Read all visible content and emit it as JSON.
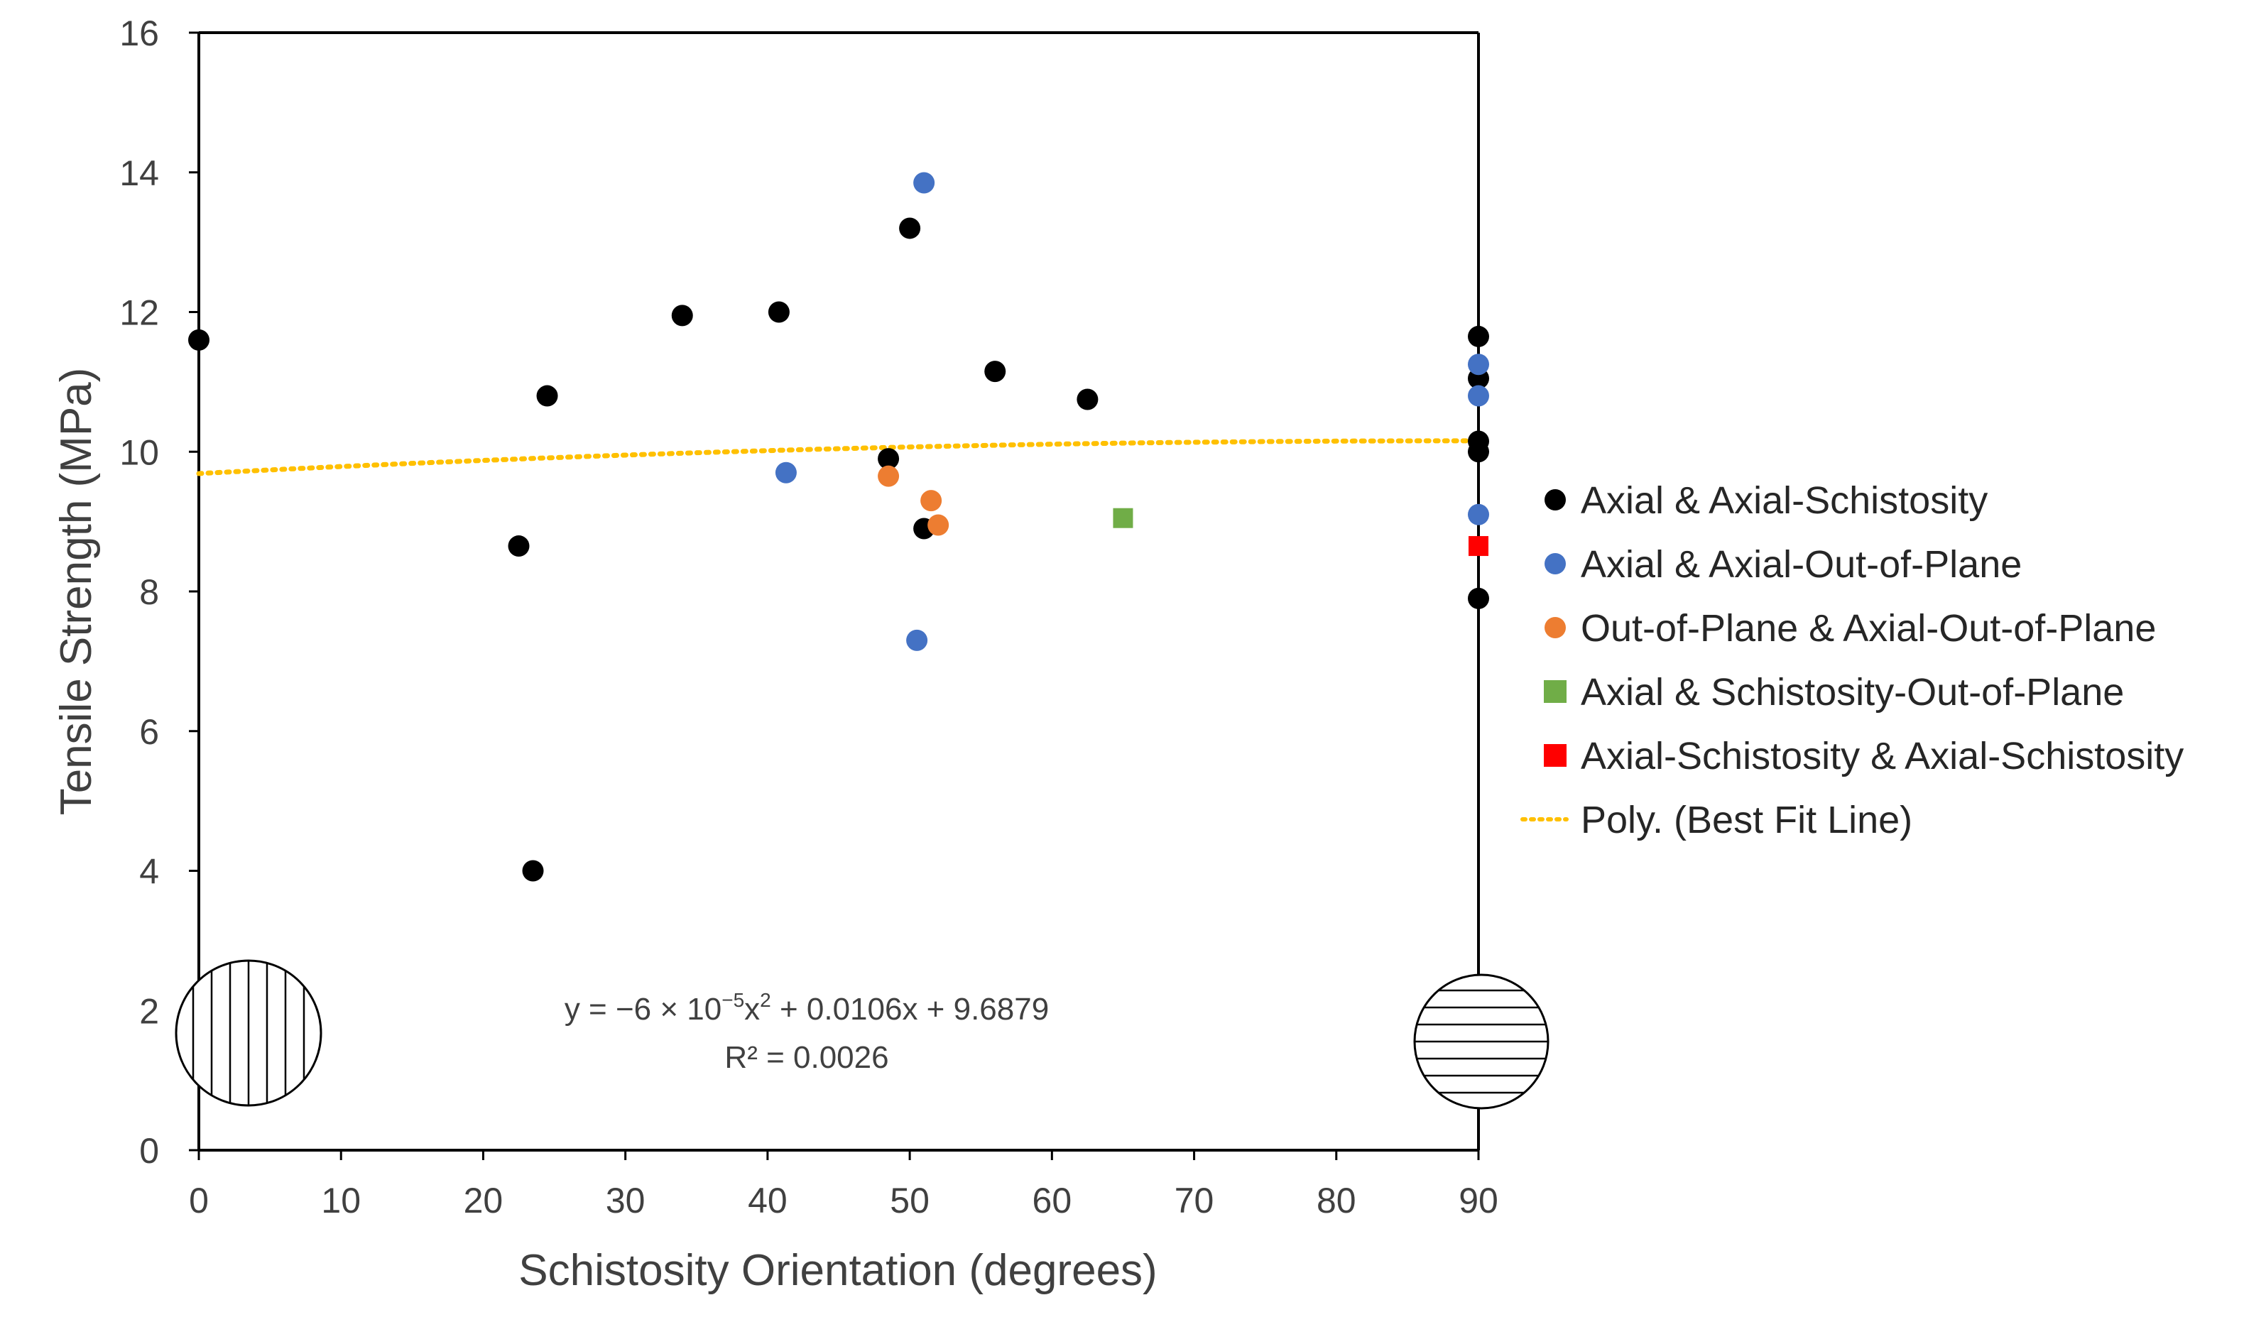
{
  "chart_data": {
    "type": "scatter",
    "xlabel": "Schistosity Orientation (degrees)",
    "ylabel": "Tensile Strength (MPa)",
    "xlim": [
      0,
      90
    ],
    "ylim": [
      0,
      16
    ],
    "xticks": [
      0,
      10,
      20,
      30,
      40,
      50,
      60,
      70,
      80,
      90
    ],
    "yticks": [
      0,
      2,
      4,
      6,
      8,
      10,
      12,
      14,
      16
    ],
    "grid": false,
    "legend_position": "right",
    "series": [
      {
        "name": "Axial & Axial-Schistosity",
        "marker": "circle",
        "color": "#000000",
        "points": [
          {
            "x": 0,
            "y": 11.6
          },
          {
            "x": 22.5,
            "y": 8.65
          },
          {
            "x": 23.5,
            "y": 4.0
          },
          {
            "x": 24.5,
            "y": 10.8
          },
          {
            "x": 34,
            "y": 11.95
          },
          {
            "x": 40.8,
            "y": 12.0
          },
          {
            "x": 48.5,
            "y": 9.9
          },
          {
            "x": 50,
            "y": 13.2
          },
          {
            "x": 51,
            "y": 8.9
          },
          {
            "x": 56,
            "y": 11.15
          },
          {
            "x": 62.5,
            "y": 10.75
          },
          {
            "x": 90,
            "y": 11.65
          },
          {
            "x": 90,
            "y": 11.05
          },
          {
            "x": 90,
            "y": 10.15
          },
          {
            "x": 90,
            "y": 10.0
          },
          {
            "x": 90,
            "y": 7.9
          }
        ]
      },
      {
        "name": "Axial & Axial-Out-of-Plane",
        "marker": "circle",
        "color": "#4472C4",
        "points": [
          {
            "x": 41.3,
            "y": 9.7
          },
          {
            "x": 50.5,
            "y": 7.3
          },
          {
            "x": 51,
            "y": 13.85
          },
          {
            "x": 90,
            "y": 11.25
          },
          {
            "x": 90,
            "y": 10.8
          },
          {
            "x": 90,
            "y": 9.1
          }
        ]
      },
      {
        "name": "Out-of-Plane & Axial-Out-of-Plane",
        "marker": "circle",
        "color": "#ED7D31",
        "points": [
          {
            "x": 48.5,
            "y": 9.65
          },
          {
            "x": 51.5,
            "y": 9.3
          },
          {
            "x": 52,
            "y": 8.95
          }
        ]
      },
      {
        "name": "Axial & Schistosity-Out-of-Plane",
        "marker": "square",
        "color": "#70AD47",
        "points": [
          {
            "x": 65,
            "y": 9.05
          }
        ]
      },
      {
        "name": "Axial-Schistosity & Axial-Schistosity",
        "marker": "square",
        "color": "#FF0000",
        "points": [
          {
            "x": 90,
            "y": 8.65
          }
        ]
      }
    ],
    "trendline": {
      "name": "Poly. (Best Fit Line)",
      "type": "polynomial",
      "color": "#FFC000",
      "style": "dotted",
      "coefficients": {
        "a": -6e-05,
        "b": 0.0106,
        "c": 9.6879
      },
      "x_range": [
        0,
        90
      ],
      "equation_parts": {
        "prefix": "y = −6 × 10",
        "exp1": "−5",
        "mid": "x",
        "exp2": "2",
        "suffix": " + 0.0106x + 9.6879"
      },
      "r_squared": "R² = 0.0026"
    }
  }
}
